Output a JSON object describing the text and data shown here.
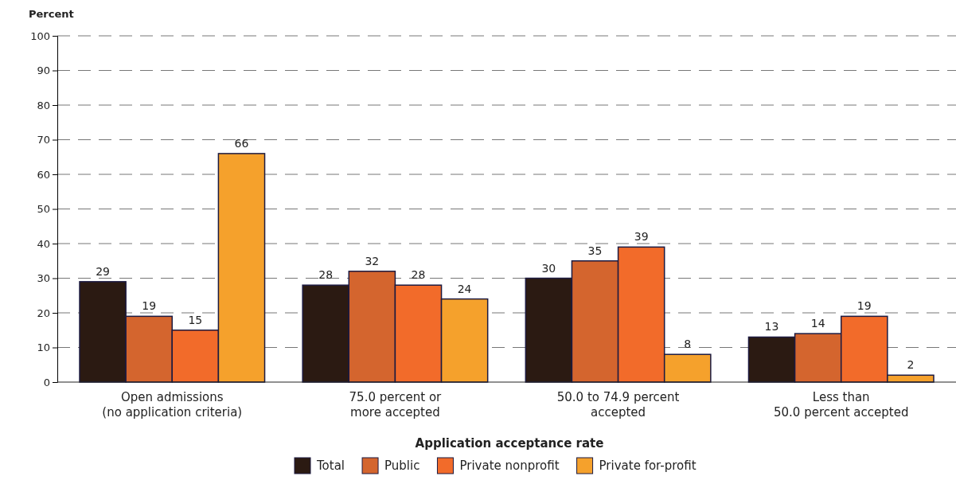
{
  "chart_data": {
    "type": "bar",
    "ylabel": "Percent",
    "xlabel": "Application acceptance rate",
    "categories": [
      "Open admissions\n(no application criteria)",
      "75.0 percent or\nmore accepted",
      "50.0 to 74.9 percent\naccepted",
      "Less than\n50.0 percent accepted"
    ],
    "series": [
      {
        "name": "Total",
        "color": "#2b1a12",
        "values": [
          29,
          28,
          30,
          13
        ]
      },
      {
        "name": "Public",
        "color": "#d4652e",
        "values": [
          19,
          32,
          35,
          14
        ]
      },
      {
        "name": "Private nonprofit",
        "color": "#f26b2a",
        "values": [
          15,
          28,
          39,
          19
        ]
      },
      {
        "name": "Private for-profit",
        "color": "#f5a12c",
        "values": [
          66,
          24,
          8,
          2
        ]
      }
    ],
    "ylim": [
      0,
      100
    ],
    "yticks": [
      0,
      10,
      20,
      30,
      40,
      50,
      60,
      70,
      80,
      90,
      100
    ],
    "grid": "y",
    "legend": "bottom",
    "data_labels": true
  }
}
